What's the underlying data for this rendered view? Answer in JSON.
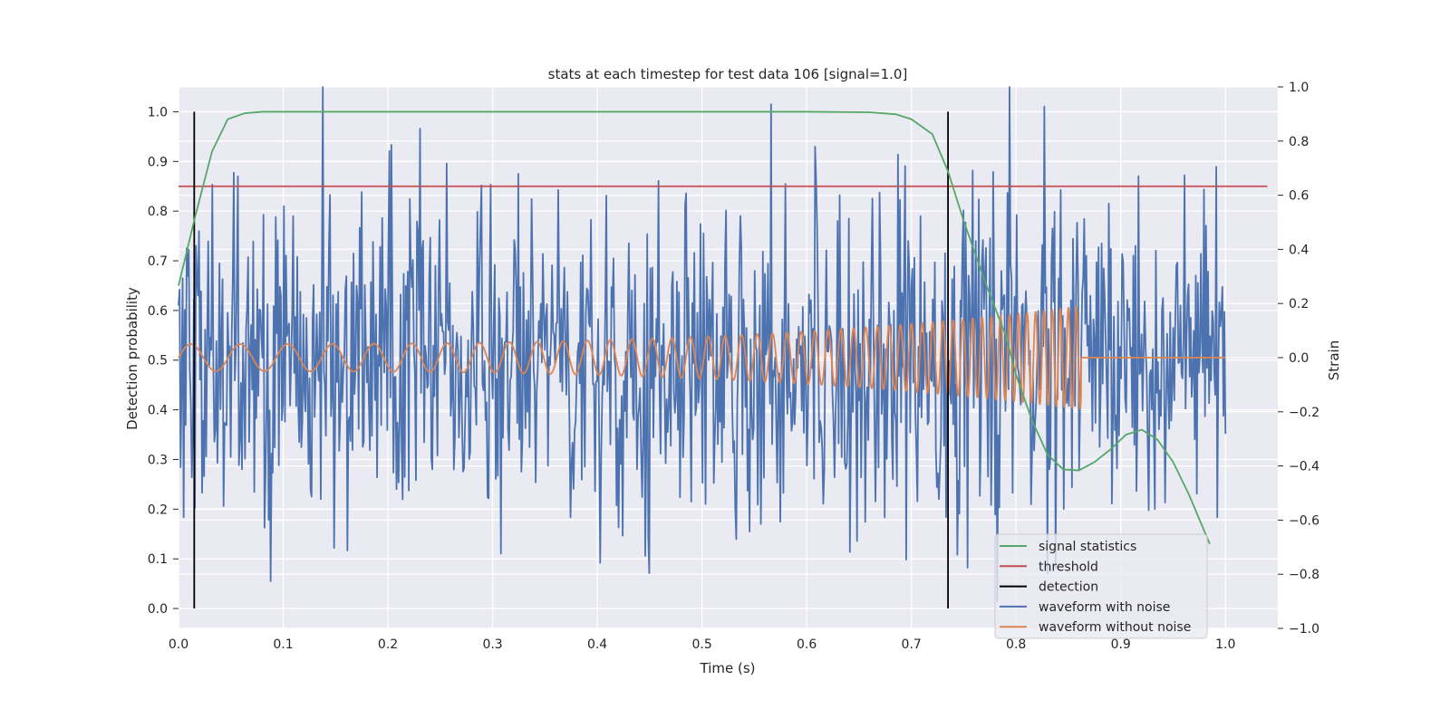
{
  "chart_data": {
    "type": "line",
    "title": "stats at each timestep for test data 106 [signal=1.0]",
    "xlabel": "Time (s)",
    "ylabel_left": "Detection probability",
    "ylabel_right": "Strain",
    "xlim": [
      0.0,
      1.05
    ],
    "ylim_left": [
      -0.04,
      1.05
    ],
    "ylim_right": [
      -1.0,
      1.0
    ],
    "xticks": [
      "0.0",
      "0.1",
      "0.2",
      "0.3",
      "0.4",
      "0.5",
      "0.6",
      "0.7",
      "0.8",
      "0.9",
      "1.0"
    ],
    "yticks_left": [
      "0.0",
      "0.1",
      "0.2",
      "0.3",
      "0.4",
      "0.5",
      "0.6",
      "0.7",
      "0.8",
      "0.9",
      "1.0"
    ],
    "yticks_right": [
      "−1.0",
      "−0.8",
      "−0.6",
      "−0.4",
      "−0.2",
      "0.0",
      "0.2",
      "0.4",
      "0.6",
      "0.8",
      "1.0"
    ],
    "grid": true,
    "legend_position": "lower-right",
    "colors": {
      "background": "#eaeaf2",
      "grid": "#ffffff",
      "signal_statistics": "#55a868",
      "threshold": "#c44e52",
      "detection": "#000000",
      "waveform_with_noise": "#4c72b0",
      "waveform_without_noise": "#dd8452"
    },
    "legend": [
      "signal statistics",
      "threshold",
      "detection",
      "waveform with noise",
      "waveform without noise"
    ],
    "series": [
      {
        "name": "signal statistics",
        "axis": "left",
        "x": [
          0.0,
          0.016,
          0.032,
          0.047,
          0.063,
          0.08,
          0.1,
          0.2,
          0.3,
          0.4,
          0.5,
          0.6,
          0.66,
          0.685,
          0.7,
          0.72,
          0.735,
          0.75,
          0.77,
          0.79,
          0.8,
          0.815,
          0.83,
          0.845,
          0.86,
          0.875,
          0.89,
          0.905,
          0.92,
          0.935,
          0.95,
          0.965,
          0.985
        ],
        "y": [
          0.65,
          0.79,
          0.92,
          0.985,
          0.997,
          1.0,
          1.0,
          1.0,
          1.0,
          1.0,
          1.0,
          1.0,
          0.999,
          0.995,
          0.985,
          0.955,
          0.88,
          0.78,
          0.66,
          0.55,
          0.47,
          0.38,
          0.31,
          0.28,
          0.278,
          0.295,
          0.32,
          0.35,
          0.36,
          0.34,
          0.295,
          0.23,
          0.13
        ]
      },
      {
        "name": "threshold",
        "axis": "left",
        "x": [
          0.0,
          1.04
        ],
        "y": [
          0.85,
          0.85
        ]
      },
      {
        "name": "detection",
        "axis": "left",
        "x": [
          0.015,
          0.735
        ],
        "y_range": [
          0.0,
          1.0
        ]
      },
      {
        "name": "waveform with noise",
        "axis": "right",
        "x_range": [
          0.0,
          1.0
        ],
        "y_range": [
          -0.91,
          1.0
        ],
        "samples": 1024
      },
      {
        "name": "waveform without noise",
        "axis": "right",
        "x_range": [
          0.0,
          1.0
        ],
        "merger_time": 0.862,
        "amplitude_start": 0.05,
        "amplitude_end": 0.19,
        "post_merger_value": 0.0
      }
    ]
  }
}
